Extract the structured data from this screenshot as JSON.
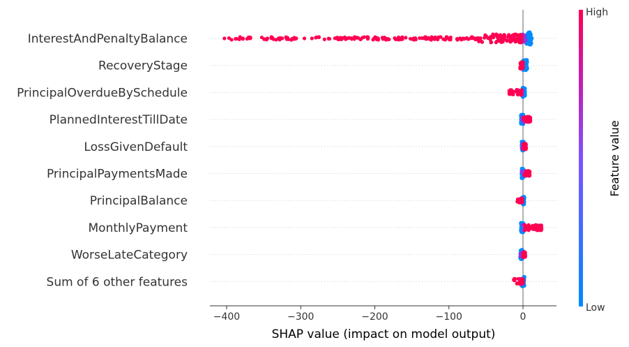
{
  "chart_data": {
    "type": "beeswarm",
    "xlabel": "SHAP value (impact on model output)",
    "xlim": [
      -425,
      45
    ],
    "xticks": [
      {
        "value": -400,
        "label": "−400"
      },
      {
        "value": -300,
        "label": "−300"
      },
      {
        "value": -200,
        "label": "−200"
      },
      {
        "value": -100,
        "label": "−100"
      },
      {
        "value": 0,
        "label": "0"
      }
    ],
    "colorbar": {
      "label": "Feature value",
      "high_label": "High",
      "low_label": "Low",
      "high_color": "#ff0052",
      "low_color": "#008bfb"
    },
    "features": [
      {
        "name": "InterestAndPenaltyBalance",
        "low_range": [
          4,
          12
        ],
        "high_range": [
          -403,
          -2
        ],
        "high_tail": [
          -403,
          -378,
          -345,
          -330,
          -318,
          -306,
          -295
        ],
        "spread": 6
      },
      {
        "name": "RecoveryStage",
        "low_range": [
          0,
          6
        ],
        "high_range": [
          -4,
          0
        ],
        "high_tail": [],
        "spread": 5
      },
      {
        "name": "PrincipalOverdueBySchedule",
        "low_range": [
          -1,
          3
        ],
        "high_range": [
          -20,
          -2
        ],
        "high_tail": [],
        "spread": 4
      },
      {
        "name": "PlannedInterestTillDate",
        "low_range": [
          -3,
          1
        ],
        "high_range": [
          1,
          10
        ],
        "high_tail": [],
        "spread": 4
      },
      {
        "name": "LossGivenDefault",
        "low_range": [
          -2,
          1
        ],
        "high_range": [
          0,
          4
        ],
        "high_tail": [],
        "spread": 4
      },
      {
        "name": "PrincipalPaymentsMade",
        "low_range": [
          -2,
          1
        ],
        "high_range": [
          1,
          9
        ],
        "high_tail": [],
        "spread": 4
      },
      {
        "name": "PrincipalBalance",
        "low_range": [
          -1,
          2
        ],
        "high_range": [
          -8,
          -1
        ],
        "high_tail": [],
        "spread": 3
      },
      {
        "name": "MonthlyPayment",
        "low_range": [
          -3,
          1
        ],
        "high_range": [
          1,
          25
        ],
        "high_tail": [],
        "spread": 4
      },
      {
        "name": "WorseLateCategory",
        "low_range": [
          -4,
          0
        ],
        "high_range": [
          0,
          3
        ],
        "high_tail": [],
        "spread": 4
      },
      {
        "name": "Sum of 6 other features",
        "low_range": [
          -2,
          2
        ],
        "high_range": [
          -13,
          0
        ],
        "high_tail": [],
        "spread": 4
      }
    ]
  }
}
